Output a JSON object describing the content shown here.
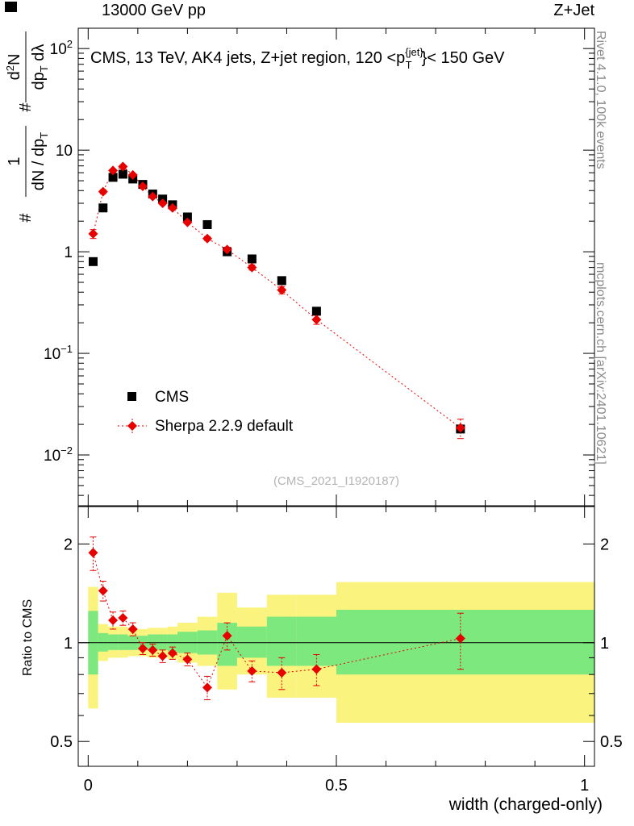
{
  "header": {
    "left": "13000 GeV pp",
    "right": "Z+Jet"
  },
  "panel_title_parts": [
    {
      "t": "CMS, 13 TeV, AK4 jets, Z+jet region, 120 <p",
      "s": "n"
    },
    {
      "t": "{jet}",
      "s": "sup"
    },
    {
      "t": "T",
      "s": "sub"
    },
    {
      "t": "}< 150 GeV",
      "s": "after"
    }
  ],
  "watermark": "(CMS_2021_I1920187)",
  "side_labels": {
    "top_right": "Rivet 4.1.0, 100k events",
    "bottom_right": "mcplots.cern.ch [arXiv:2401.10621]"
  },
  "ylabel_main": {
    "hash": "#",
    "f1num": "1",
    "f1den_pre": "dN / dp",
    "f1den_sub": "T",
    "f2num_pre": "d",
    "f2num_sup": "2",
    "f2num_post": "N",
    "f2den_pre": "dp",
    "f2den_sub": "T",
    "f2den_post": " dλ"
  },
  "axes": {
    "x": {
      "title": "width (charged-only)",
      "min": -0.02,
      "max": 1.02,
      "majors": [
        0,
        0.5,
        1
      ],
      "labels": [
        "0",
        "0.5",
        "1"
      ],
      "minor_step": 0.1
    },
    "y_main": {
      "log": true,
      "min_exp": -2.5,
      "max_exp": 2.2,
      "tick_labels": [
        {
          "v": 100,
          "t": "10",
          "e": "2"
        },
        {
          "v": 10,
          "t": "10"
        },
        {
          "v": 1,
          "t": "1"
        },
        {
          "v": 0.1,
          "t": "10",
          "e": "−1"
        },
        {
          "v": 0.01,
          "t": "10",
          "e": "−2"
        }
      ]
    },
    "y_ratio": {
      "log": true,
      "min": 0.42,
      "max": 2.6,
      "title": "Ratio to CMS",
      "majors": [
        2,
        1,
        0.5
      ],
      "labels": [
        "2",
        "1",
        "0.5"
      ],
      "minors": [
        0.6,
        0.7,
        0.8,
        0.9
      ]
    }
  },
  "legend": [
    {
      "label": "CMS",
      "marker": "square",
      "color": "#000000"
    },
    {
      "label": "Sherpa 2.2.9 default",
      "marker": "diamond",
      "color": "#e60000",
      "line": "dotted"
    }
  ],
  "colors": {
    "cms": "#000000",
    "sherpa": "#e60000",
    "band_yellow": "#faf37e",
    "band_green": "#7de87d",
    "gray_text": "#8c8c8c",
    "watermark": "#b4b4b4"
  },
  "chart_data": {
    "type": "scatter",
    "x": [
      0.01,
      0.03,
      0.05,
      0.07,
      0.09,
      0.11,
      0.13,
      0.15,
      0.17,
      0.2,
      0.24,
      0.28,
      0.33,
      0.39,
      0.46,
      0.75
    ],
    "series": [
      {
        "name": "CMS",
        "marker": "square",
        "color": "#000000",
        "y": [
          0.8,
          2.7,
          5.4,
          5.8,
          5.2,
          4.6,
          3.7,
          3.3,
          2.9,
          2.2,
          1.85,
          1.0,
          0.85,
          0.52,
          0.26,
          0.018
        ]
      },
      {
        "name": "Sherpa 2.2.9 default",
        "marker": "diamond",
        "color": "#e60000",
        "y": [
          1.5,
          3.9,
          6.3,
          6.9,
          5.7,
          4.4,
          3.5,
          3.0,
          2.7,
          1.95,
          1.35,
          1.05,
          0.7,
          0.42,
          0.215,
          0.0185
        ],
        "yerr": [
          0.15,
          0.18,
          0.22,
          0.22,
          0.18,
          0.14,
          0.12,
          0.1,
          0.09,
          0.07,
          0.06,
          0.06,
          0.04,
          0.035,
          0.022,
          0.004
        ]
      }
    ],
    "ratio": {
      "name": "Sherpa/CMS",
      "y": [
        1.88,
        1.44,
        1.17,
        1.19,
        1.1,
        0.96,
        0.95,
        0.91,
        0.93,
        0.89,
        0.73,
        1.05,
        0.82,
        0.81,
        0.83,
        1.03
      ],
      "yerr": [
        0.22,
        0.1,
        0.07,
        0.06,
        0.05,
        0.04,
        0.04,
        0.04,
        0.04,
        0.04,
        0.06,
        0.1,
        0.06,
        0.09,
        0.09,
        0.2
      ]
    },
    "bands": {
      "edges": [
        0,
        0.02,
        0.04,
        0.06,
        0.08,
        0.1,
        0.12,
        0.14,
        0.16,
        0.18,
        0.22,
        0.26,
        0.3,
        0.36,
        0.42,
        0.5,
        1.02
      ],
      "yellow_lo": [
        0.63,
        0.88,
        0.9,
        0.9,
        0.91,
        0.91,
        0.9,
        0.9,
        0.89,
        0.87,
        0.85,
        0.72,
        0.8,
        0.68,
        0.68,
        0.57
      ],
      "yellow_hi": [
        1.48,
        1.14,
        1.12,
        1.12,
        1.1,
        1.1,
        1.11,
        1.11,
        1.12,
        1.15,
        1.2,
        1.42,
        1.28,
        1.4,
        1.4,
        1.53
      ],
      "green_lo": [
        0.8,
        0.94,
        0.95,
        0.95,
        0.95,
        0.95,
        0.95,
        0.95,
        0.94,
        0.93,
        0.92,
        0.85,
        0.9,
        0.85,
        0.85,
        0.8
      ],
      "green_hi": [
        1.25,
        1.07,
        1.06,
        1.06,
        1.05,
        1.05,
        1.06,
        1.06,
        1.06,
        1.08,
        1.09,
        1.15,
        1.12,
        1.2,
        1.2,
        1.26
      ]
    }
  }
}
